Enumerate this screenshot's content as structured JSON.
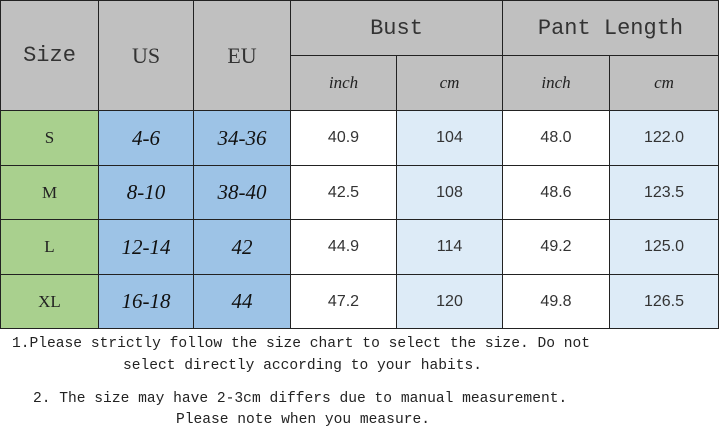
{
  "headers": {
    "size": "Size",
    "us": "US",
    "eu": "EU",
    "bust": "Bust",
    "pant_length": "Pant Length",
    "inch": "inch",
    "cm": "cm"
  },
  "rows": [
    {
      "size": "S",
      "us": "4-6",
      "eu": "34-36",
      "bust_inch": "40.9",
      "bust_cm": "104",
      "pant_inch": "48.0",
      "pant_cm": "122.0"
    },
    {
      "size": "M",
      "us": "8-10",
      "eu": "38-40",
      "bust_inch": "42.5",
      "bust_cm": "108",
      "pant_inch": "48.6",
      "pant_cm": "123.5"
    },
    {
      "size": "L",
      "us": "12-14",
      "eu": "42",
      "bust_inch": "44.9",
      "bust_cm": "114",
      "pant_inch": "49.2",
      "pant_cm": "125.0"
    },
    {
      "size": "XL",
      "us": "16-18",
      "eu": "44",
      "bust_inch": "47.2",
      "bust_cm": "120",
      "pant_inch": "49.8",
      "pant_cm": "126.5"
    }
  ],
  "notes": [
    "1.Please strictly follow the size chart to select the size. Do not",
    "select directly according to your habits.",
    "2. The size may have 2-3cm differs due to manual measurement.",
    "Please note when you measure."
  ],
  "colors": {
    "header": "#c0c0c0",
    "size": "#a9d08e",
    "us_eu": "#9dc3e6",
    "inch": "#ffffff",
    "cm": "#ddebf7"
  }
}
